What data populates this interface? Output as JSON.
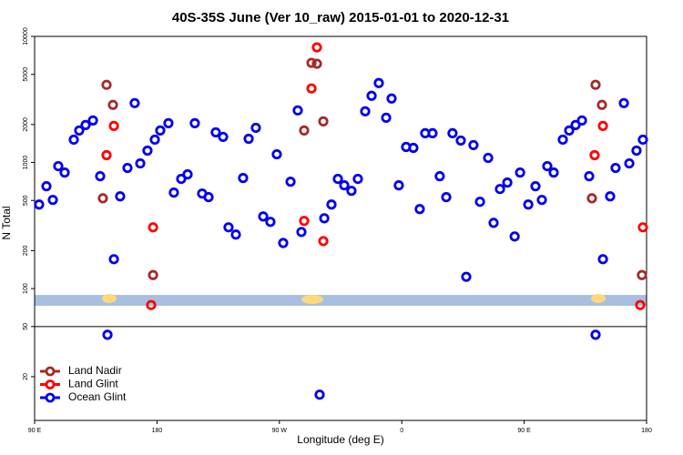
{
  "chart_data": {
    "type": "scatter",
    "title": "40S-35S June (Ver 10_raw)   2015-01-01 to 2020-12-31",
    "x_label": "Longitude (deg E)",
    "y_label": "N Total",
    "log_y": true,
    "legend": "bottom-left",
    "xlim": [
      90,
      540
    ],
    "xticks": [
      {
        "value": 90,
        "label": "90 E"
      },
      180,
      {
        "value": 270,
        "label": "90 W"
      },
      {
        "value": 360,
        "label": "0"
      },
      {
        "value": 450,
        "label": "90 E"
      },
      {
        "value": 540,
        "label": "180"
      }
    ],
    "ylim": [
      9,
      10000
    ],
    "yticks": [
      10000,
      5000,
      2000,
      1000,
      500,
      200,
      100,
      50,
      20
    ],
    "band": {
      "ylim": [
        73,
        89
      ],
      "color": "#a8bfdf"
    },
    "hline": 50,
    "series": [
      {
        "name": "Land Nadir",
        "color": "#a52a2a",
        "x": [
          140.2,
          142.9,
          147.6,
          177.1,
          288.2,
          293.6,
          297.6,
          302.3,
          499.8,
          502.5,
          507.2,
          536.6
        ],
        "values": [
          520,
          4130,
          2862,
          128,
          1794,
          6166,
          6067,
          2119,
          520,
          4130,
          2862,
          128
        ]
      },
      {
        "name": "Land Glint",
        "color": "#ff0000",
        "x": [
          142.9,
          148.3,
          177.1,
          175.7,
          288.2,
          293.6,
          297.6,
          302.3,
          501.8,
          507.9,
          537.3,
          535.3
        ],
        "values": [
          1143,
          1950,
          306,
          74,
          344,
          3864,
          8185,
          238,
          1143,
          1950,
          306,
          74
        ]
      },
      {
        "name": "Ocean Glint",
        "color": "#0000ee",
        "x": [
          93.3,
          98.7,
          103.4,
          107.4,
          112.1,
          118.8,
          122.8,
          127.5,
          132.9,
          138.2,
          143.6,
          148.3,
          152.9,
          158.3,
          163.6,
          167.7,
          173,
          178.4,
          182.4,
          188.4,
          192.4,
          197.8,
          202.5,
          207.8,
          213.2,
          217.9,
          223.2,
          228.6,
          232.6,
          238,
          243.3,
          247.4,
          252.7,
          258.1,
          263.4,
          268.1,
          272.8,
          278.2,
          283.5,
          286.2,
          299.6,
          303,
          308.3,
          313,
          317.7,
          323,
          327.7,
          333.1,
          337.8,
          343.1,
          348.5,
          352.5,
          357.8,
          363.2,
          368.5,
          373.2,
          377.2,
          382.6,
          387.9,
          392.7,
          397.3,
          403.4,
          407.4,
          412.7,
          417.5,
          423.5,
          427.5,
          432.2,
          437.6,
          443,
          447,
          453,
          458.3,
          463,
          467,
          471.7,
          478.4,
          483.1,
          487.8,
          492.5,
          497.8,
          502.5,
          507.9,
          513.2,
          517.2,
          523.3,
          527.3,
          532.6,
          537.3
        ],
        "values": [
          464,
          648,
          505,
          935,
          832,
          1517,
          1794,
          1982,
          2154,
          778,
          43,
          171,
          539,
          905,
          2958,
          983,
          1242,
          1517,
          1794,
          2049,
          577,
          741,
          805,
          2049,
          567,
          531,
          1734,
          1596,
          306,
          268,
          753,
          1542,
          1884,
          373,
          338,
          1161,
          230,
          704,
          2588,
          281,
          14.4,
          361,
          464,
          741,
          659,
          596,
          741,
          2546,
          3381,
          4266,
          2265,
          3215,
          659,
          1328,
          1306,
          427,
          1706,
          1706,
          778,
          531,
          1706,
          1493,
          124,
          1374,
          488,
          1087,
          332,
          616,
          693,
          259,
          832,
          464,
          648,
          505,
          935,
          832,
          1517,
          1794,
          1982,
          2154,
          778,
          43,
          171,
          539,
          905,
          2958,
          983,
          1242,
          1517
        ]
      }
    ]
  }
}
